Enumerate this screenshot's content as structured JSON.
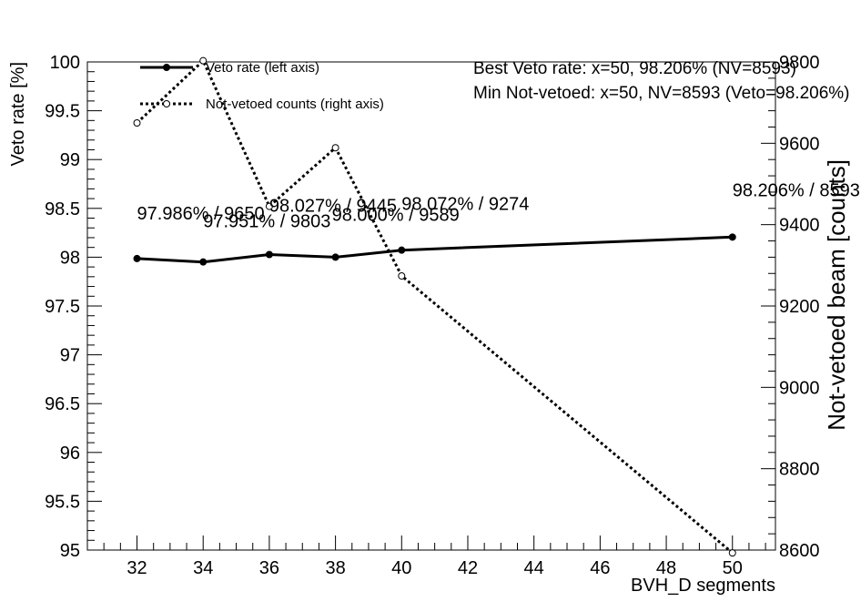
{
  "chart_data": {
    "type": "line",
    "xlabel": "BVH_D segments",
    "ylabel_left": "Veto rate [%]",
    "ylabel_right": "Not-vetoed beam [counts]",
    "xlim": [
      30.5,
      51.3
    ],
    "ylim_left": [
      95,
      100
    ],
    "ylim_right": [
      8600,
      9800
    ],
    "x_ticks": [
      32,
      34,
      36,
      38,
      40,
      42,
      44,
      46,
      48,
      50
    ],
    "y_left_ticks": [
      "95",
      "95.5",
      "96",
      "96.5",
      "97",
      "97.5",
      "98",
      "98.5",
      "99",
      "99.5",
      "100"
    ],
    "y_right_ticks": [
      "8600",
      "8800",
      "9000",
      "9200",
      "9400",
      "9600",
      "9800"
    ],
    "series": [
      {
        "name": "Veto rate (left axis)",
        "axis": "left",
        "style": "solid",
        "x": [
          32,
          34,
          36,
          38,
          40,
          50
        ],
        "values": [
          97.986,
          97.951,
          98.027,
          98.0,
          98.072,
          98.206
        ]
      },
      {
        "name": "Not-vetoed counts (right axis)",
        "axis": "right",
        "style": "dotted",
        "x": [
          32,
          34,
          36,
          38,
          40,
          50
        ],
        "values": [
          9650,
          9803,
          9445,
          9589,
          9274,
          8593
        ]
      }
    ],
    "point_labels": [
      {
        "text": "97.986% / 9650"
      },
      {
        "text": "97.951% / 9803"
      },
      {
        "text": "98.027% / 9445"
      },
      {
        "text": "98.000% / 9589"
      },
      {
        "text": "98.072% / 9274"
      },
      {
        "text": "98.206% / 8593"
      }
    ],
    "annotations": [
      "Best Veto rate: x=50, 98.206%  (NV=8593)",
      "Min Not-vetoed: x=50, NV=8593  (Veto=98.206%)"
    ],
    "legend_position": "top-left",
    "grid": false
  }
}
